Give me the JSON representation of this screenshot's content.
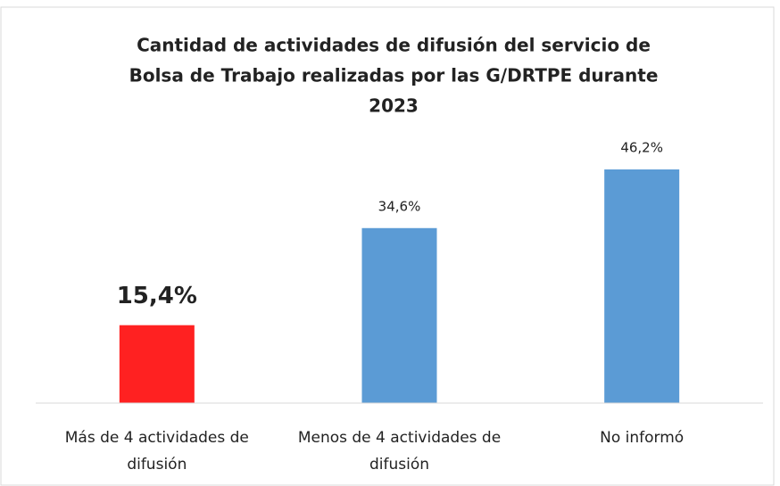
{
  "chart_data": {
    "type": "bar",
    "title": [
      "Cantidad de actividades de difusión del servicio de",
      "Bolsa de Trabajo realizadas por las G/DRTPE durante",
      "2023"
    ],
    "categories": [
      "Más de 4 actividades de difusión",
      "Menos de 4 actividades de difusión",
      "No informó"
    ],
    "values": [
      15.4,
      34.6,
      46.2
    ],
    "value_labels": [
      "15,4%",
      "34,6%",
      "46,2%"
    ],
    "colors": [
      "#ff2121",
      "#5b9bd5",
      "#5b9bd5"
    ]
  }
}
